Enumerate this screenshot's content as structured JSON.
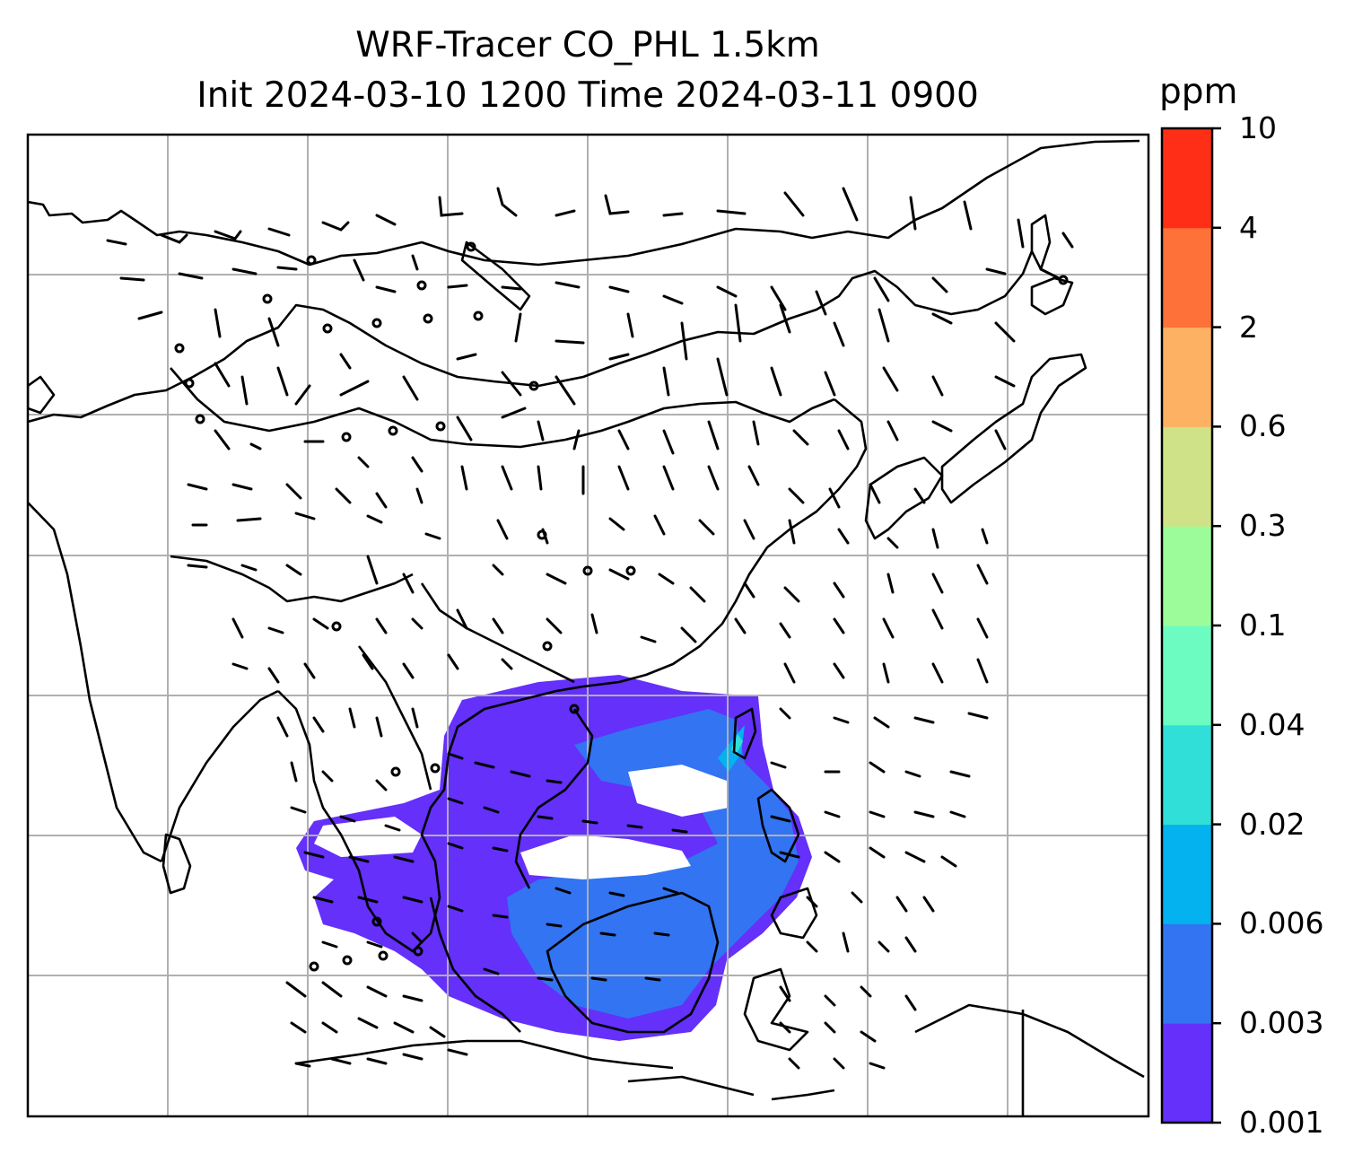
{
  "title": {
    "line1": "WRF-Tracer CO_PHL 1.5km",
    "line2": "Init 2024-03-10 1200 Time 2024-03-11 0900"
  },
  "colorbar": {
    "unit": "ppm",
    "levels": [
      "0.001",
      "0.003",
      "0.006",
      "0.02",
      "0.04",
      "0.1",
      "0.3",
      "0.6",
      "2",
      "4",
      "10"
    ],
    "colors": [
      "#6430fa",
      "#3274f2",
      "#03b2ee",
      "#30dfd7",
      "#6cfcc1",
      "#9dfc9a",
      "#cfe287",
      "#fdb163",
      "#fe7139",
      "#ff2f17"
    ]
  },
  "map": {
    "coastline_color": "#000000",
    "gridline_color": "#b0b0b0",
    "barb_color": "#000000",
    "plume_levels_shown": [
      "0.001",
      "0.003",
      "0.006",
      "0.02"
    ]
  }
}
